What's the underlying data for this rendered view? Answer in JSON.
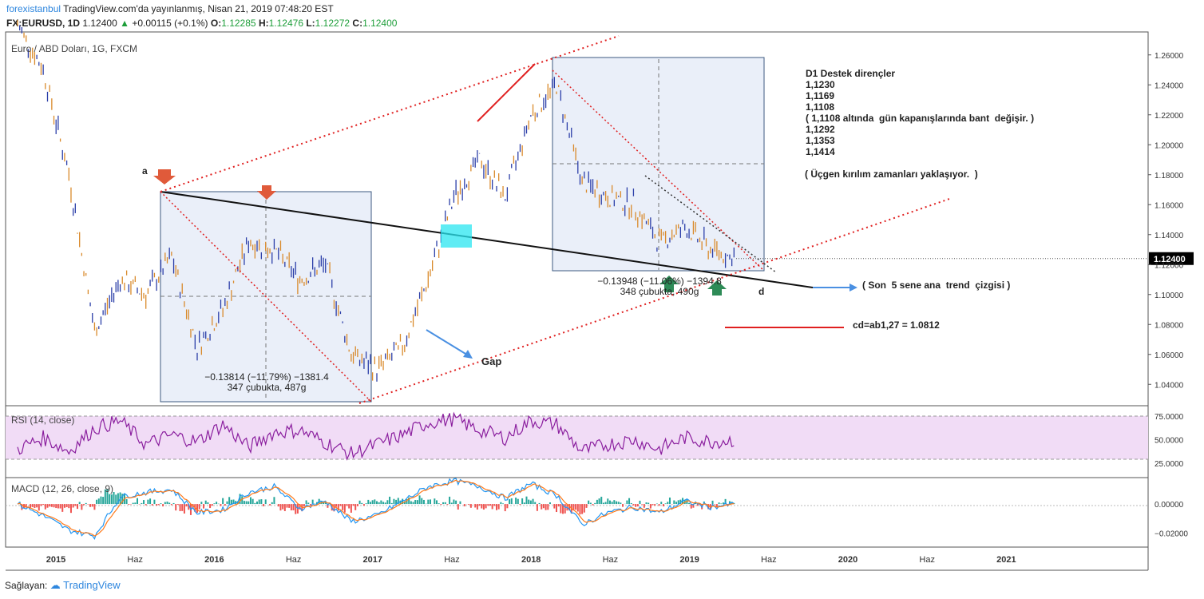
{
  "header": {
    "brand": "forexistanbul",
    "published": " TradingView.com'da yayınlanmış, Nisan 21, 2019 07:48:20 EST",
    "symbol": "FX:EURUSD, 1D",
    "last": "1.12400",
    "change": "+0.00115 (+0.1%)",
    "o_label": "O:",
    "o": "1.12285",
    "h_label": "H:",
    "h": "1.12476",
    "l_label": "L:",
    "l": "1.12272",
    "c_label": "C:",
    "c": "1.12400"
  },
  "footer": {
    "provided_by": "Sağlayan:",
    "logo_text": "TradingView"
  },
  "notes": {
    "lines": [
      "D1 Destek dirençler",
      "1,1230",
      "1,1169",
      "1,1108",
      "( 1,1108 altında  gün kapanışlarında bant  değişir. )",
      "1,1292",
      "1,1353",
      "1,1414"
    ],
    "triangle_note": "( Üçgen kırılım zamanları yaklaşıyor.  )",
    "trend_note": "( Son  5 sene ana  trend  çizgisi )",
    "cd_note": "cd=ab1,27 = 1.0812",
    "gap_label": "Gap",
    "point_a": "a",
    "point_d": "d"
  },
  "chart_data": [
    {
      "type": "line",
      "title": "Euro / ABD Doları, 1G, FXCM",
      "x": [
        "2014-09",
        "2014-11",
        "2015-01",
        "2015-03",
        "2015-05",
        "2015-07",
        "2015-09",
        "2015-11",
        "2016-01",
        "2016-03",
        "2016-05",
        "2016-07",
        "2016-09",
        "2016-11",
        "2017-01",
        "2017-03",
        "2017-05",
        "2017-07",
        "2017-09",
        "2017-11",
        "2018-01",
        "2018-03",
        "2018-05",
        "2018-07",
        "2018-09",
        "2018-11",
        "2019-01",
        "2019-03",
        "2019-04"
      ],
      "series": [
        {
          "values": [
            1.28,
            1.25,
            1.18,
            1.075,
            1.11,
            1.1,
            1.125,
            1.065,
            1.09,
            1.135,
            1.13,
            1.11,
            1.12,
            1.06,
            1.05,
            1.065,
            1.11,
            1.165,
            1.19,
            1.165,
            1.22,
            1.24,
            1.175,
            1.165,
            1.16,
            1.135,
            1.145,
            1.13,
            1.124
          ]
        }
      ],
      "xticks": [
        "2015",
        "Haz",
        "2016",
        "Haz",
        "2017",
        "Haz",
        "2018",
        "Haz",
        "2019",
        "Haz",
        "2020",
        "Haz",
        "2021"
      ],
      "yticks": [
        "1.26000",
        "1.24000",
        "1.22000",
        "1.20000",
        "1.18000",
        "1.16000",
        "1.14000",
        "1.12000",
        "1.10000",
        "1.08000",
        "1.06000",
        "1.04000"
      ],
      "ylim": [
        1.03,
        1.27
      ],
      "last_price_label": "1.12400",
      "measure_boxes": [
        {
          "line1": "−0.13814 (−11.79%) −1381.4",
          "line2": "347 çubukta, 487g"
        },
        {
          "line1": "−0.13948 (−11.06%) −1394.8",
          "line2": "348 çubukta, 490g"
        }
      ]
    },
    {
      "type": "line",
      "title": "RSI (14, close)",
      "values": [
        40,
        52,
        38,
        62,
        70,
        45,
        55,
        48,
        66,
        42,
        58,
        60,
        47,
        35,
        45,
        55,
        68,
        72,
        60,
        52,
        70,
        66,
        38,
        45,
        50,
        40,
        52,
        48,
        50
      ],
      "yticks": [
        "75.0000",
        "50.0000",
        "25.0000"
      ],
      "ylim": [
        15,
        80
      ],
      "levels": [
        70,
        30
      ]
    },
    {
      "type": "line",
      "title": "MACD (12, 26, close, 9)",
      "macd": [
        0.0,
        -0.008,
        -0.018,
        -0.022,
        0.005,
        0.008,
        0.01,
        -0.006,
        -0.004,
        0.008,
        0.012,
        -0.003,
        0.002,
        -0.012,
        -0.008,
        0.002,
        0.012,
        0.016,
        0.012,
        0.004,
        0.014,
        0.006,
        -0.014,
        -0.006,
        -0.002,
        -0.006,
        0.002,
        -0.002,
        0.0
      ],
      "yticks": [
        "0.00000",
        "−0.02000"
      ],
      "ylim": [
        -0.028,
        0.016
      ]
    }
  ]
}
